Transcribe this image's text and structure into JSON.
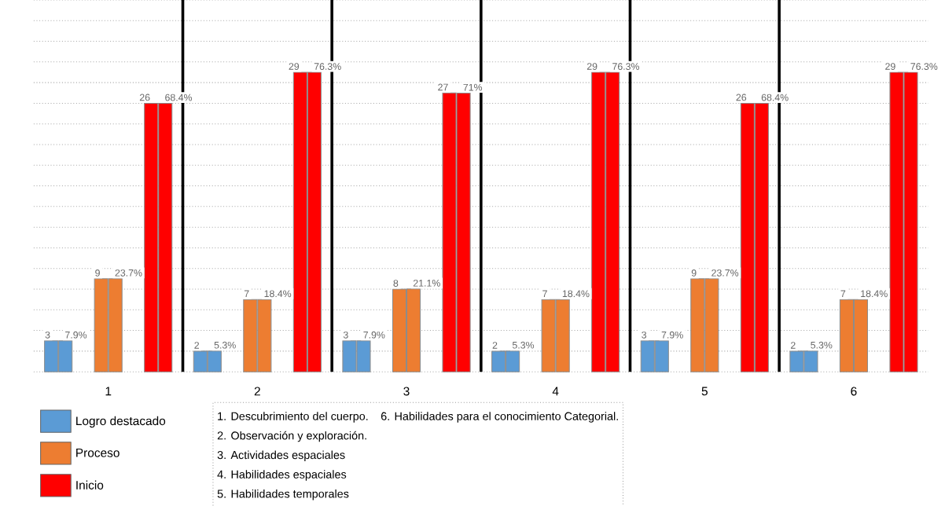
{
  "chart_data": {
    "type": "bar",
    "categories": [
      "1",
      "2",
      "3",
      "4",
      "5",
      "6"
    ],
    "series": [
      {
        "name": "Logro destacado",
        "color": "#5b9bd5",
        "values": [
          3,
          2,
          3,
          2,
          3,
          2
        ],
        "value_labels": [
          "3",
          "2",
          "3",
          "2",
          "3",
          "2"
        ]
      },
      {
        "color": "#5b9bd5",
        "axis": "y2",
        "values": [
          7.9,
          5.3,
          7.9,
          5.3,
          7.9,
          5.3
        ],
        "value_labels": [
          "7.9%",
          "5.3%",
          "7.9%",
          "5.3%",
          "7.9%",
          "5.3%"
        ]
      },
      {
        "name": "Proceso",
        "color": "#ed7d31",
        "values": [
          9,
          7,
          8,
          7,
          9,
          7
        ],
        "value_labels": [
          "9",
          "7",
          "8",
          "7",
          "9",
          "7"
        ]
      },
      {
        "color": "#ed7d31",
        "axis": "y2",
        "values": [
          23.7,
          18.4,
          21.1,
          18.4,
          23.7,
          18.4
        ],
        "value_labels": [
          "23.7%",
          "18.4%",
          "21.1%",
          "18.4%",
          "23.7%",
          "18.4%"
        ]
      },
      {
        "name": "Inicio",
        "color": "#ff0000",
        "values": [
          26,
          29,
          27,
          29,
          26,
          29
        ],
        "value_labels": [
          "26",
          "29",
          "27",
          "29",
          "26",
          "29"
        ]
      },
      {
        "color": "#ff0000",
        "axis": "y2",
        "values": [
          68.4,
          76.3,
          71,
          76.3,
          68.4,
          76.3
        ],
        "value_labels": [
          "68.4%",
          "76.3%",
          "71%",
          "76.3%",
          "68.4%",
          "76.3%"
        ]
      }
    ],
    "ylim": [
      0,
      36
    ],
    "yticks": [
      {
        "value": 0,
        "label": null
      },
      {
        "value": 2,
        "label": null
      },
      {
        "value": 4,
        "label": null
      },
      {
        "value": 6,
        "label": null
      },
      {
        "value": 8,
        "label": null
      },
      {
        "value": 10,
        "label": null
      },
      {
        "value": 12,
        "label": null
      },
      {
        "value": 14,
        "label": null
      },
      {
        "value": 16,
        "label": null
      },
      {
        "value": 18,
        "label": null
      },
      {
        "value": 20,
        "label": null
      },
      {
        "value": 22,
        "label": null
      },
      {
        "value": 24,
        "label": null
      },
      {
        "value": 26,
        "label": null
      },
      {
        "value": 28,
        "label": null
      },
      {
        "value": 30,
        "label": null
      },
      {
        "value": 32,
        "label": null
      },
      {
        "value": 34,
        "label": null
      },
      {
        "value": 36,
        "label": null
      }
    ],
    "y2lim": [
      0,
      94.74
    ],
    "tick_labels": "x",
    "grid": "y",
    "legend": "bottom left",
    "annotations": [
      "1. Descubrimiento del cuerpo.",
      "2. Observación y exploración.",
      "3. Actividades espaciales",
      "4. Habilidades espaciales",
      "5. Habilidades temporales",
      "6. Habilidades para el conocimiento Categorial."
    ]
  }
}
